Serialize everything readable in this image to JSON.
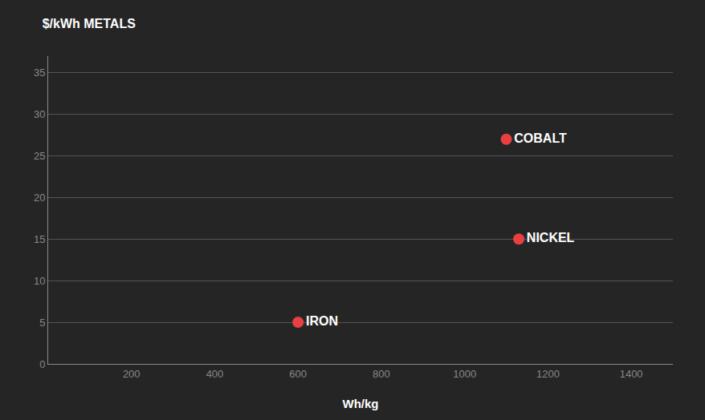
{
  "chart_data": {
    "type": "scatter",
    "title": "$/kWh METALS",
    "x_label": "Wh/kg",
    "x": [
      600,
      1100,
      1130
    ],
    "values": [
      5,
      27,
      15
    ],
    "labels": [
      "IRON",
      "COBALT",
      "NICKEL"
    ],
    "colors": [
      "#e84040",
      "#e84040",
      "#e84040"
    ],
    "xlim": [
      0,
      1500
    ],
    "xticks": [
      200,
      400,
      600,
      800,
      1000,
      1200,
      1400
    ],
    "ylim": [
      0,
      37
    ],
    "yticks": [
      0,
      5,
      10,
      15,
      20,
      25,
      30,
      35
    ],
    "grid": "y",
    "data_labels": true
  }
}
